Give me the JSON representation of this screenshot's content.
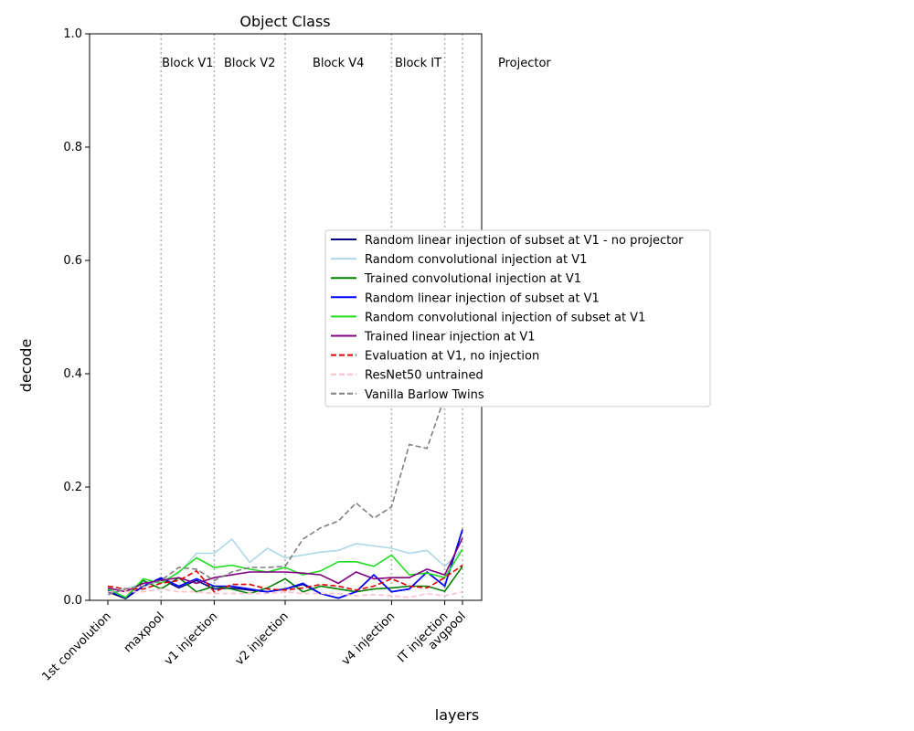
{
  "chart_data": {
    "type": "line",
    "title": "Object Class",
    "xlabel": "layers",
    "ylabel": "decode",
    "ylim": [
      0,
      1.0
    ],
    "yticks": [
      "0.0",
      "0.2",
      "0.4",
      "0.6",
      "0.8",
      "1.0"
    ],
    "ytick_values": [
      0,
      0.2,
      0.4,
      0.6,
      0.8,
      1.0
    ],
    "xlim": [
      -0.1,
      21.5
    ],
    "x": [
      0,
      1,
      2,
      3,
      4,
      5,
      6,
      7,
      8,
      9,
      10,
      11,
      12,
      13,
      14,
      15,
      16,
      17,
      18,
      19,
      20,
      21
    ],
    "xticks": [
      {
        "x": 0,
        "label": "1st convolution"
      },
      {
        "x": 3,
        "label": "maxpool"
      },
      {
        "x": 6,
        "label": "v1 injection"
      },
      {
        "x": 10,
        "label": "v2 injection"
      },
      {
        "x": 16,
        "label": "v4 injection"
      },
      {
        "x": 19,
        "label": "IT injection"
      },
      {
        "x": 20,
        "label": "avgpool"
      }
    ],
    "vlines": [
      3,
      6,
      10,
      16,
      19,
      20
    ],
    "block_labels": [
      {
        "x": 4.5,
        "label": "Block V1"
      },
      {
        "x": 8,
        "label": "Block V2"
      },
      {
        "x": 13,
        "label": "Block V4"
      },
      {
        "x": 17.5,
        "label": "Block IT"
      },
      {
        "x": 23.5,
        "label": "Projector"
      }
    ],
    "legend_position": "center-right",
    "series": [
      {
        "name": "Random linear injection of subset at V1 - no projector",
        "color": "#000080",
        "dash": "solid",
        "values": [
          0.015,
          0.003,
          0.025,
          0.038,
          0.022,
          0.035,
          0.02,
          0.022,
          0.018,
          0.015,
          0.02,
          0.028,
          0.012,
          0.004,
          0.015,
          0.045,
          0.015,
          0.02,
          0.05,
          0.025,
          0.125,
          null
        ]
      },
      {
        "name": "Random convolutional injection at V1",
        "color": "#add8e6",
        "dash": "solid",
        "values": [
          0.018,
          0.02,
          0.03,
          0.032,
          0.048,
          0.083,
          0.083,
          0.108,
          0.067,
          0.092,
          0.075,
          0.08,
          0.085,
          0.088,
          0.1,
          0.096,
          0.092,
          0.083,
          0.088,
          0.06,
          0.09,
          null
        ]
      },
      {
        "name": "Trained convolutional injection at V1",
        "color": "#008000",
        "dash": "solid",
        "values": [
          0.02,
          0.005,
          0.035,
          0.02,
          0.04,
          0.015,
          0.025,
          0.02,
          0.012,
          0.022,
          0.038,
          0.015,
          0.025,
          0.02,
          0.015,
          0.02,
          0.022,
          0.025,
          0.025,
          0.016,
          0.06,
          null
        ]
      },
      {
        "name": "Random linear injection of subset at V1",
        "color": "#0000ff",
        "dash": "solid",
        "values": [
          0.018,
          0.005,
          0.025,
          0.04,
          0.025,
          0.038,
          0.025,
          0.025,
          0.02,
          0.015,
          0.02,
          0.03,
          0.012,
          0.004,
          0.015,
          0.045,
          0.015,
          0.02,
          0.05,
          0.025,
          0.125,
          null
        ]
      },
      {
        "name": "Random convolutional injection of subset at V1",
        "color": "#22dd22",
        "dash": "solid",
        "values": [
          0.02,
          0.005,
          0.038,
          0.03,
          0.05,
          0.075,
          0.058,
          0.062,
          0.055,
          0.05,
          0.058,
          0.045,
          0.052,
          0.068,
          0.068,
          0.06,
          0.08,
          0.045,
          0.048,
          0.04,
          0.09,
          null
        ]
      },
      {
        "name": "Trained linear injection at V1",
        "color": "#800080",
        "dash": "solid",
        "values": [
          0.022,
          0.015,
          0.03,
          0.035,
          0.04,
          0.03,
          0.04,
          0.045,
          0.05,
          0.05,
          0.05,
          0.048,
          0.045,
          0.03,
          0.05,
          0.038,
          0.04,
          0.04,
          0.055,
          0.045,
          0.11,
          null
        ]
      },
      {
        "name": "Evaluation at V1, no injection",
        "color": "#dd0000",
        "dash": "dashed",
        "values": [
          0.025,
          0.02,
          0.02,
          0.03,
          0.035,
          0.052,
          0.015,
          0.028,
          0.028,
          0.02,
          0.018,
          0.022,
          0.028,
          0.025,
          0.018,
          0.025,
          0.038,
          0.025,
          0.022,
          0.04,
          0.062,
          null
        ]
      },
      {
        "name": "ResNet50 untrained",
        "color": "#ffc0cb",
        "dash": "dashed",
        "values": [
          0.015,
          0.015,
          0.015,
          0.02,
          0.015,
          0.015,
          0.012,
          0.012,
          0.012,
          0.012,
          0.015,
          0.012,
          0.012,
          0.012,
          0.008,
          0.01,
          0.008,
          0.005,
          0.012,
          0.008,
          0.015,
          null
        ]
      },
      {
        "name": "Vanilla Barlow Twins",
        "color": "#808080",
        "dash": "dashed",
        "values": [
          0.01,
          0.02,
          0.025,
          0.035,
          0.058,
          0.055,
          0.035,
          0.05,
          0.058,
          0.058,
          0.06,
          0.108,
          0.128,
          0.14,
          0.172,
          0.145,
          0.165,
          0.275,
          0.268,
          0.36,
          0.375,
          null
        ]
      }
    ]
  }
}
